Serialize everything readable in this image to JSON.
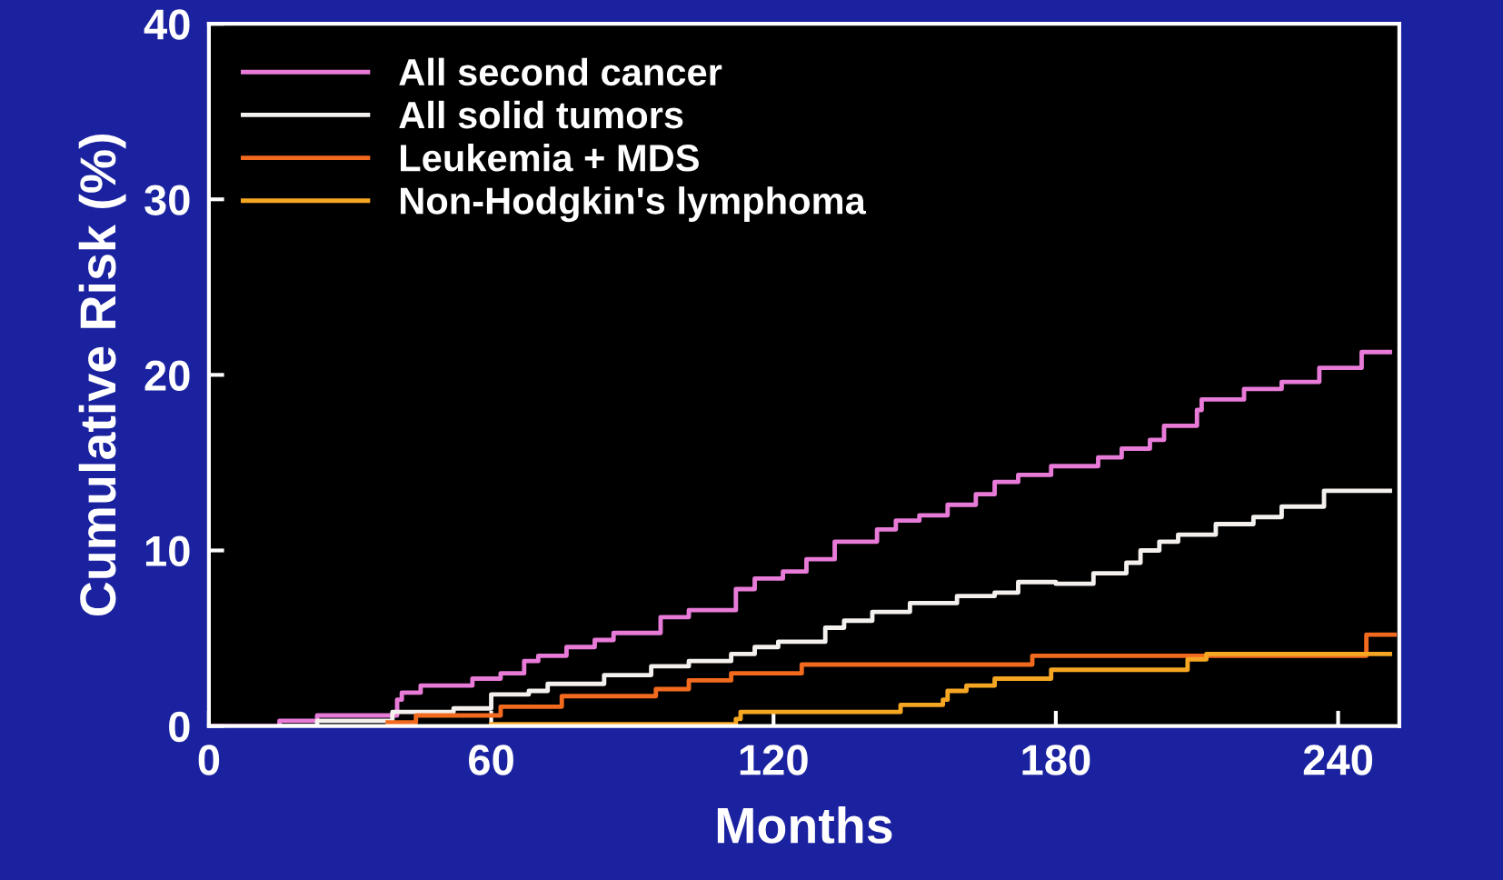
{
  "chart_data": {
    "type": "step",
    "xlabel": "Months",
    "ylabel": "Cumulative Risk (%)",
    "xlim": [
      0,
      253
    ],
    "ylim": [
      0,
      40
    ],
    "xticks": [
      0,
      60,
      120,
      180,
      240
    ],
    "yticks": [
      0,
      10,
      20,
      30,
      40
    ],
    "grid": false,
    "legend": "top left",
    "marker": "none",
    "line_style": "solid",
    "series": [
      {
        "name": "All second cancer",
        "color": "#e87ad8",
        "x": [
          0,
          15,
          23,
          40,
          41,
          45,
          56,
          62,
          67,
          70,
          76,
          82,
          86,
          96,
          102,
          112,
          116,
          122,
          127,
          133,
          142,
          146,
          151,
          157,
          163,
          167,
          172,
          179,
          189,
          194,
          200,
          203,
          210,
          211,
          220,
          228,
          236,
          245,
          251
        ],
        "values": [
          0,
          0.3,
          0.6,
          1.5,
          1.9,
          2.3,
          2.7,
          3.0,
          3.7,
          4.0,
          4.5,
          4.9,
          5.3,
          6.2,
          6.6,
          7.8,
          8.4,
          8.8,
          9.5,
          10.5,
          11.2,
          11.7,
          12.0,
          12.6,
          13.2,
          13.9,
          14.3,
          14.8,
          15.3,
          15.8,
          16.3,
          17.1,
          18.0,
          18.6,
          19.2,
          19.6,
          20.4,
          21.3,
          21.3
        ]
      },
      {
        "name": "All solid tumors",
        "color": "#f4f0ee",
        "x": [
          15,
          23,
          39,
          52,
          60,
          68,
          72,
          84,
          94,
          102,
          111,
          116,
          121,
          131,
          135,
          141,
          149,
          159,
          167,
          172,
          180,
          188,
          195,
          198,
          202,
          206,
          214,
          222,
          228,
          237,
          251
        ],
        "values": [
          0,
          0.3,
          0.8,
          1.0,
          1.8,
          2.0,
          2.4,
          2.9,
          3.4,
          3.7,
          4.1,
          4.5,
          4.8,
          5.6,
          6.0,
          6.5,
          7.0,
          7.4,
          7.6,
          8.2,
          8.1,
          8.7,
          9.3,
          10.0,
          10.5,
          10.9,
          11.5,
          11.9,
          12.5,
          13.4,
          13.4
        ]
      },
      {
        "name": "Leukemia + MDS",
        "color": "#f26a1e",
        "x": [
          38,
          44,
          62,
          75,
          95,
          102,
          111,
          126,
          175,
          246,
          252
        ],
        "values": [
          0.2,
          0.6,
          1.1,
          1.7,
          2.1,
          2.6,
          3.0,
          3.5,
          4.0,
          5.2,
          5.2
        ]
      },
      {
        "name": "Non-Hodgkin's lymphoma",
        "color": "#f5a623",
        "x": [
          60,
          112,
          113,
          124,
          147,
          156,
          157,
          161,
          167,
          179,
          208,
          212,
          251
        ],
        "values": [
          0.1,
          0.4,
          0.8,
          0.8,
          1.2,
          1.5,
          2.0,
          2.3,
          2.7,
          3.2,
          3.8,
          4.1,
          4.1
        ]
      }
    ]
  }
}
